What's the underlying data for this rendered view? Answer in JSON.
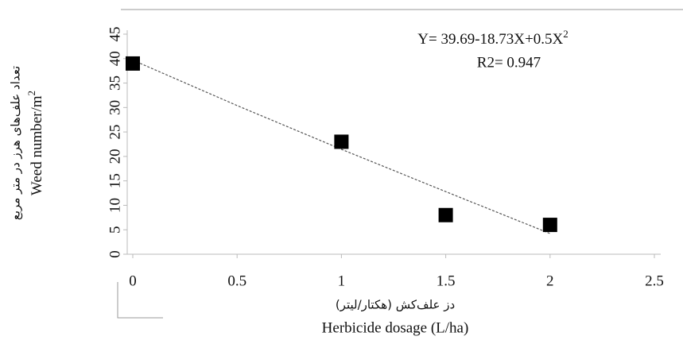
{
  "chart_data": {
    "type": "scatter",
    "x_label_fa": "دز علف‌کش (هکتار/لیتر)",
    "x_label": "Herbicide dosage (L/ha)",
    "y_label_fa": "تعداد علف‌های هرز در متر مربع",
    "y_label": [
      "Weed number/m",
      "2"
    ],
    "equation": [
      "Y= 39.69-18.73X+0.5X",
      "2"
    ],
    "r2": "R2= 0.947",
    "series": [
      {
        "color": "#000000",
        "x": [
          0,
          1,
          1.5,
          2
        ],
        "values": [
          39,
          23,
          8,
          6
        ]
      },
      {
        "color": "#555555",
        "trendline": true,
        "x": [
          0,
          0.5,
          1,
          1.5,
          2
        ],
        "values": [
          39.69,
          30.4,
          21.46,
          12.8,
          4.23
        ]
      }
    ],
    "xlim": [
      0,
      2.5
    ],
    "xticks": [
      0,
      0.5,
      1,
      1.5,
      2,
      2.5
    ],
    "ylim": [
      0,
      45
    ],
    "yticks": [
      0,
      5,
      10,
      15,
      20,
      25,
      30,
      35,
      40,
      45
    ]
  }
}
